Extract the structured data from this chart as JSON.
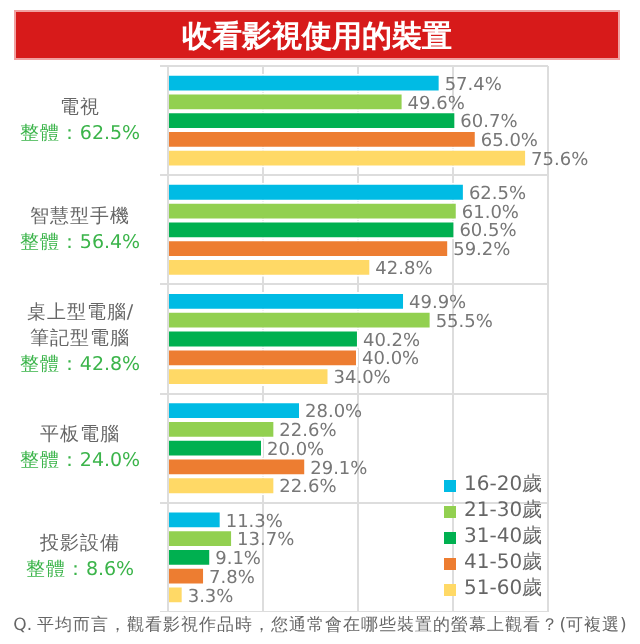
{
  "chart_data": {
    "type": "bar",
    "orientation": "horizontal",
    "title": "收看影視使用的裝置",
    "categories": [
      "電視",
      "智慧型手機",
      "桌上型電腦/筆記型電腦",
      "平板電腦",
      "投影設備"
    ],
    "series": [
      {
        "name": "16-20歲",
        "color": "#00bbe4",
        "values": [
          57.4,
          62.5,
          49.9,
          28.0,
          11.3
        ],
        "value_labels": [
          "57.4%",
          "62.5%",
          "49.9%",
          "28.0%",
          "11.3%"
        ]
      },
      {
        "name": "21-30歲",
        "color": "#92d050",
        "values": [
          49.6,
          61.0,
          55.5,
          22.6,
          13.7
        ],
        "value_labels": [
          "49.6%",
          "61.0%",
          "55.5%",
          "22.6%",
          "13.7%"
        ]
      },
      {
        "name": "31-40歲",
        "color": "#00b050",
        "values": [
          60.7,
          60.5,
          40.2,
          20.0,
          9.1
        ],
        "value_labels": [
          "60.7%",
          "60.5%",
          "40.2%",
          "20.0%",
          "9.1%"
        ]
      },
      {
        "name": "41-50歲",
        "color": "#ed7d31",
        "values": [
          65.0,
          59.2,
          40.0,
          29.1,
          7.8
        ],
        "value_labels": [
          "65.0%",
          "59.2%",
          "40.0%",
          "29.1%",
          "7.8%"
        ]
      },
      {
        "name": "51-60歲",
        "color": "#ffd966",
        "values": [
          75.6,
          42.8,
          34.0,
          22.6,
          3.3
        ],
        "value_labels": [
          "75.6%",
          "42.8%",
          "34.0%",
          "22.6%",
          "3.3%"
        ]
      }
    ],
    "xlim": [
      0,
      80
    ],
    "xticks": [
      {
        "value": 0,
        "label": null
      },
      {
        "value": 20,
        "label": null
      },
      {
        "value": 40,
        "label": null
      },
      {
        "value": 60,
        "label": null
      },
      {
        "value": 80,
        "label": null
      }
    ],
    "tick_labels": "y",
    "grid": true,
    "legend": "bottom right",
    "annotations": [
      "整體：62.5%",
      "整體：56.4%",
      "整體：42.8%",
      "整體：24.0%",
      "整體：8.6%",
      "Q. 平均而言，觀看影視作品時，您通常會在哪些裝置的螢幕上觀看？(可複選)"
    ]
  }
}
